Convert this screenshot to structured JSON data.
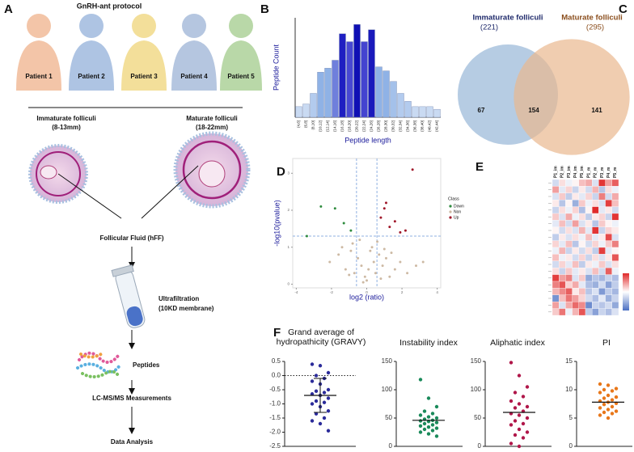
{
  "panel_a": {
    "label": "A",
    "title": "GnRH-ant protocol",
    "patients": [
      "Patient 1",
      "Patient 2",
      "Patient 3",
      "Patient 4",
      "Patient 5"
    ],
    "immature": {
      "name": "Immaturate folliculi",
      "size": "(8-13mm)"
    },
    "mature": {
      "name": "Maturate folliculi",
      "size": "(18-22mm)"
    },
    "fluid": "Follicular Fluid (hFF)",
    "filtration": {
      "name": "Ultrafiltration",
      "detail": "(10KD membrane)"
    },
    "peptides": "Peptides",
    "measurement": "LC-MS/MS Measurements",
    "analysis": "Data Analysis"
  },
  "chart_data": [
    {
      "type": "bar",
      "label": "B",
      "xlabel": "Peptide length",
      "ylabel": "Peptide Count",
      "categories": [
        "(4,6]",
        "(6,8]",
        "(8,10]",
        "(10,12]",
        "(12,14]",
        "(14,16]",
        "(16,18]",
        "(18,20]",
        "(20,22]",
        "(22,24]",
        "(24,26]",
        "(26,28]",
        "(28,30]",
        "(30,32]",
        "(32,34]",
        "(34,36]",
        "(36,38]",
        "(38,40]",
        "(40,42]",
        "(42,44]"
      ],
      "values": [
        8,
        10,
        18,
        34,
        37,
        43,
        63,
        57,
        70,
        57,
        66,
        38,
        35,
        27,
        18,
        12,
        8,
        8,
        8,
        6
      ],
      "colors": [
        "#c9daf2",
        "#c9daf2",
        "#b3cbee",
        "#8fb2e6",
        "#8fb2e6",
        "#6f7fdc",
        "#1f1fc2",
        "#4848d2",
        "#1010b4",
        "#4444d0",
        "#1a1abc",
        "#8fb2e6",
        "#8fb2e6",
        "#a4c1ea",
        "#b3cbee",
        "#b3cbee",
        "#c9daf2",
        "#c9daf2",
        "#c9daf2",
        "#c9daf2"
      ],
      "ylim": [
        0,
        75
      ]
    },
    {
      "type": "venn",
      "label": "C",
      "sets": [
        {
          "name": "Immaturate folliculi",
          "size": 221,
          "size_label": "(221)",
          "color": "#9dbbd9",
          "text_color": "#1f2a6b"
        },
        {
          "name": "Maturate folliculi",
          "size": 295,
          "size_label": "(295)",
          "color": "#e9b88f",
          "text_color": "#8a4d1c"
        }
      ],
      "only_first": 67,
      "both": 154,
      "only_second": 141
    },
    {
      "type": "scatter",
      "label": "D",
      "xlabel": "log2 (ratio)",
      "ylabel": "-log10(pvalue)",
      "legend_title": "Class",
      "xlim": [
        -4.2,
        4.2
      ],
      "ylim": [
        -0.1,
        3.4
      ],
      "xticks": [
        -4,
        -2,
        0,
        2,
        4
      ],
      "yticks": [
        0,
        1,
        2,
        3
      ],
      "vlines": [
        -0.58,
        0.58
      ],
      "hline": 1.3,
      "series": [
        {
          "name": "Down",
          "color": "#2e8b3e",
          "x": [
            -2.6,
            -1.8,
            -1.3,
            -0.9,
            -3.4
          ],
          "y": [
            2.1,
            2.05,
            1.65,
            1.45,
            1.3
          ]
        },
        {
          "name": "Non",
          "color": "#cdb9a3",
          "x": [
            -2.1,
            -1.6,
            -1.2,
            -0.9,
            -0.7,
            -0.5,
            -0.3,
            -0.1,
            0.1,
            0.2,
            0.4,
            0.5,
            0.7,
            0.9,
            1.1,
            1.3,
            1.6,
            1.9,
            2.3,
            2.8,
            3.2,
            -1.4,
            -0.8,
            -0.4,
            0.0,
            0.3,
            0.6,
            1.0,
            -0.2,
            0.8,
            1.4,
            -1.0
          ],
          "y": [
            0.6,
            0.8,
            0.4,
            0.9,
            0.3,
            0.7,
            0.5,
            0.2,
            0.4,
            0.9,
            0.6,
            0.3,
            0.8,
            0.5,
            0.7,
            0.2,
            0.4,
            0.6,
            0.3,
            0.5,
            0.6,
            1.0,
            1.1,
            1.2,
            0.1,
            1.0,
            1.15,
            0.95,
            0.05,
            0.15,
            0.85,
            0.25
          ]
        },
        {
          "name": "Up",
          "color": "#a0182a",
          "x": [
            0.8,
            1.0,
            1.3,
            1.6,
            1.9,
            2.2,
            2.6,
            1.1
          ],
          "y": [
            1.8,
            2.05,
            1.55,
            1.7,
            1.4,
            1.45,
            3.1,
            2.2
          ]
        }
      ]
    },
    {
      "type": "heatmap",
      "label": "E",
      "columns": [
        "P1_im",
        "P2_im",
        "P3_im",
        "P4_im",
        "P5_im",
        "P1_m",
        "P2_m",
        "P3_m",
        "P4_m",
        "P5_m"
      ],
      "clim": [
        -2,
        2
      ],
      "values": [
        [
          -0.5,
          0.3,
          -0.2,
          0.1,
          0.6,
          0.8,
          -0.4,
          1.9,
          0.9,
          1.5
        ],
        [
          0.9,
          -0.3,
          0.4,
          -0.6,
          0.2,
          -0.5,
          0.7,
          -0.8,
          0.3,
          -0.2
        ],
        [
          -0.4,
          0.5,
          -0.7,
          0.2,
          -0.3,
          0.4,
          -0.6,
          1.2,
          -0.5,
          0.8
        ],
        [
          0.2,
          -0.8,
          0.1,
          -1.1,
          0.5,
          -0.2,
          0.3,
          -0.4,
          1.8,
          0.6
        ],
        [
          -0.6,
          0.3,
          -0.2,
          0.4,
          -0.9,
          0.1,
          2,
          -0.3,
          0.2,
          -0.5
        ],
        [
          0.5,
          -0.4,
          0.8,
          -0.2,
          0.3,
          -0.7,
          0.2,
          0.4,
          -0.6,
          1.9
        ],
        [
          -0.3,
          0.6,
          -0.5,
          0.9,
          -0.4,
          0.2,
          -0.8,
          0.5,
          0.1,
          -0.2
        ],
        [
          0.1,
          -0.5,
          0.3,
          -0.4,
          0.7,
          -0.3,
          1.9,
          -0.6,
          0.4,
          0.2
        ],
        [
          -0.7,
          0.2,
          -0.4,
          0.3,
          -0.2,
          0.6,
          -0.3,
          0.2,
          1.7,
          -0.4
        ],
        [
          0.4,
          -0.3,
          0.6,
          -0.8,
          0.1,
          -0.5,
          0.4,
          -0.2,
          0.5,
          1.2
        ],
        [
          -0.2,
          0.7,
          -0.6,
          0.2,
          -0.5,
          0.3,
          -0.7,
          1.8,
          -0.3,
          0.1
        ],
        [
          0.6,
          -0.2,
          0.2,
          -0.5,
          0.4,
          -0.6,
          0.3,
          -0.4,
          0.2,
          1.6
        ],
        [
          -0.5,
          0.4,
          -0.3,
          0.6,
          -0.7,
          0.2,
          -0.2,
          0.5,
          -0.4,
          0.3
        ],
        [
          0.3,
          -0.6,
          0.5,
          -0.3,
          0.2,
          -0.4,
          0.6,
          -0.5,
          1.5,
          -0.2
        ],
        [
          1.8,
          0.9,
          1.2,
          -0.4,
          0.5,
          -1.2,
          -0.8,
          -1,
          -0.6,
          -0.9
        ],
        [
          1.2,
          1.6,
          0.4,
          0.8,
          -0.3,
          -0.9,
          -1.1,
          -0.5,
          -1.3,
          -0.7
        ],
        [
          0.7,
          1.1,
          1.5,
          0.2,
          0.6,
          -0.8,
          -0.4,
          -1.4,
          -0.7,
          -1
        ],
        [
          -1.5,
          0.6,
          1.3,
          0.9,
          0.4,
          -0.5,
          -0.9,
          -0.3,
          -1.1,
          -0.6
        ],
        [
          0.9,
          -0.4,
          0.8,
          1.4,
          1.1,
          -1.6,
          -0.6,
          -0.8,
          -0.5,
          -1.2
        ],
        [
          0.5,
          1.3,
          -0.2,
          0.7,
          1.6,
          -0.7,
          -1.3,
          -0.6,
          -0.9,
          -0.4
        ]
      ]
    },
    {
      "type": "strip",
      "label": "F",
      "title": "Grand average of hydropathicity (GRAVY)",
      "color": "#2b2b9a",
      "values": [
        0.4,
        0.35,
        0.1,
        0,
        -0.1,
        -0.2,
        -0.3,
        -0.5,
        -0.55,
        -0.6,
        -0.65,
        -0.7,
        -0.8,
        -0.9,
        -0.95,
        -1.0,
        -1.1,
        -1.25,
        -1.35,
        -1.5,
        -1.6,
        -1.7,
        -1.95
      ],
      "mean": -0.7,
      "sd": 0.6,
      "reference_line": 0,
      "ylim": [
        -2.5,
        0.5
      ],
      "yticks": [
        0.5,
        {
          "value": 0,
          "label": "0.0"
        },
        -0.5,
        {
          "value": -1,
          "label": "-1.0"
        },
        -1.5,
        {
          "value": -2,
          "label": "-2.0"
        },
        -2.5
      ]
    },
    {
      "type": "strip",
      "title": "Instability index",
      "color": "#1a8a5a",
      "values": [
        118,
        85,
        70,
        62,
        58,
        55,
        52,
        50,
        48,
        46,
        45,
        44,
        42,
        40,
        38,
        36,
        34,
        32,
        30,
        28,
        25,
        22,
        18
      ],
      "mean": 46,
      "ylim": [
        0,
        150
      ],
      "yticks": [
        0,
        50,
        100,
        150
      ]
    },
    {
      "type": "strip",
      "title": "Aliphatic index",
      "color": "#b0174a",
      "values": [
        148,
        125,
        105,
        95,
        88,
        80,
        75,
        70,
        68,
        62,
        58,
        55,
        50,
        45,
        40,
        38,
        30,
        25,
        20,
        15,
        5,
        0
      ],
      "mean": 60,
      "ylim": [
        0,
        150
      ],
      "yticks": [
        0,
        50,
        100,
        150
      ]
    },
    {
      "type": "strip",
      "title": "PI",
      "color": "#e8771a",
      "values": [
        11,
        10.8,
        10.2,
        10,
        9.8,
        9.5,
        9,
        8.7,
        8.5,
        8.2,
        8,
        7.8,
        7.6,
        7.4,
        7,
        6.8,
        6.5,
        6.2,
        6,
        5.8,
        5.5,
        5
      ],
      "mean": 7.8,
      "ylim": [
        0,
        15
      ],
      "yticks": [
        0,
        5,
        10,
        15
      ]
    }
  ]
}
